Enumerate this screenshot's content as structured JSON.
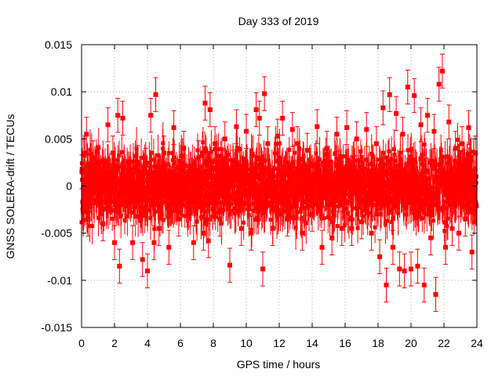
{
  "chart_data": {
    "type": "scatter",
    "title": "Day 333 of 2019",
    "xlabel": "GPS time / hours",
    "ylabel": "GNSS SOLERA-drift / TECUs",
    "xlim": [
      0,
      24
    ],
    "ylim": [
      -0.015,
      0.015
    ],
    "x_ticks": [
      0,
      2,
      4,
      6,
      8,
      10,
      12,
      14,
      16,
      18,
      20,
      22,
      24
    ],
    "x_tick_labels": [
      "0",
      "2",
      "4",
      "6",
      "8",
      "10",
      "12",
      "14",
      "16",
      "18",
      "20",
      "22",
      "24"
    ],
    "y_ticks": [
      -0.015,
      -0.01,
      -0.005,
      0,
      0.005,
      0.01,
      0.015
    ],
    "y_tick_labels": [
      "-0.015",
      "-0.01",
      "-0.005",
      "0",
      "0.005",
      "0.01",
      "0.015"
    ],
    "grid": true,
    "error_bars": true,
    "series_color": "#ff0000",
    "series": [
      {
        "marker": "square",
        "x": [
          0.02,
          0.1,
          0.2,
          0.3,
          0.4,
          0.5,
          0.7,
          1.0,
          1.3,
          1.6,
          1.9,
          2.0,
          2.2,
          2.3,
          2.5,
          2.8,
          3.1,
          3.4,
          3.7,
          3.9,
          4.0,
          4.2,
          4.4,
          4.5,
          4.7,
          5.0,
          5.3,
          5.6,
          5.9,
          6.2,
          6.5,
          6.8,
          7.1,
          7.4,
          7.5,
          7.7,
          7.8,
          8.1,
          8.4,
          8.7,
          9.0,
          9.2,
          9.4,
          9.7,
          10.0,
          10.3,
          10.6,
          10.8,
          11.0,
          11.1,
          11.3,
          11.6,
          11.9,
          12.2,
          12.5,
          12.8,
          13.1,
          13.4,
          13.7,
          14.0,
          14.3,
          14.6,
          14.9,
          15.2,
          15.5,
          15.8,
          16.1,
          16.4,
          16.7,
          17.0,
          17.3,
          17.6,
          17.9,
          18.1,
          18.3,
          18.5,
          18.7,
          18.9,
          19.1,
          19.3,
          19.5,
          19.6,
          19.8,
          20.0,
          20.2,
          20.4,
          20.6,
          20.8,
          21.0,
          21.2,
          21.4,
          21.5,
          21.7,
          21.9,
          22.1,
          22.3,
          22.5,
          22.7,
          22.9,
          23.1,
          23.3,
          23.5,
          23.7,
          23.9
        ],
        "y": [
          0.0015,
          -0.002,
          0.0035,
          0.0055,
          -0.0035,
          0.002,
          0.003,
          0.0025,
          -0.004,
          0.0065,
          0.0035,
          -0.006,
          0.0075,
          -0.0085,
          0.0072,
          0.001,
          -0.006,
          0.0025,
          -0.0078,
          0.0022,
          -0.009,
          0.0075,
          -0.006,
          0.0097,
          -0.0045,
          0.0035,
          -0.0065,
          0.0062,
          -0.0035,
          0.004,
          -0.0025,
          -0.006,
          0.003,
          -0.005,
          0.0088,
          -0.0058,
          0.0081,
          0.0045,
          -0.0035,
          0.005,
          -0.0084,
          0.002,
          0.0063,
          -0.0045,
          0.0058,
          -0.005,
          0.0081,
          0.0072,
          -0.0088,
          0.0098,
          0.0045,
          -0.0045,
          0.0053,
          0.0072,
          -0.0035,
          0.006,
          0.0045,
          -0.005,
          0.0038,
          -0.003,
          0.0063,
          -0.0065,
          0.004,
          -0.0055,
          0.0055,
          -0.0045,
          0.0062,
          -0.0045,
          0.005,
          -0.0038,
          0.006,
          -0.005,
          0.0045,
          -0.0075,
          0.0083,
          -0.0105,
          0.0097,
          -0.0065,
          0.0077,
          -0.0088,
          0.0055,
          -0.009,
          0.0105,
          -0.0088,
          0.0096,
          -0.0085,
          0.0065,
          -0.0105,
          0.0075,
          -0.0055,
          0.0058,
          -0.0115,
          0.0108,
          0.0122,
          -0.0065,
          0.0068,
          -0.0045,
          0.004,
          -0.005,
          0.0045,
          -0.0035,
          0.0062,
          -0.007,
          0.0035
        ],
        "yerr": [
          0.0018,
          0.0018,
          0.0018,
          0.0018,
          0.0018,
          0.0018,
          0.0018,
          0.0018,
          0.0018,
          0.0018,
          0.0018,
          0.0018,
          0.0018,
          0.0018,
          0.0018,
          0.0018,
          0.0018,
          0.0018,
          0.0018,
          0.0018,
          0.0018,
          0.0018,
          0.0018,
          0.0018,
          0.0018,
          0.0018,
          0.0018,
          0.0018,
          0.0018,
          0.0018,
          0.0018,
          0.0018,
          0.0018,
          0.0018,
          0.0018,
          0.0018,
          0.0018,
          0.0018,
          0.0018,
          0.0018,
          0.0018,
          0.0018,
          0.0018,
          0.0018,
          0.0018,
          0.0018,
          0.0018,
          0.0018,
          0.0018,
          0.0018,
          0.0018,
          0.0018,
          0.0018,
          0.0018,
          0.0018,
          0.0018,
          0.0018,
          0.0018,
          0.0018,
          0.0018,
          0.0018,
          0.0018,
          0.0018,
          0.0018,
          0.0018,
          0.0018,
          0.0018,
          0.0018,
          0.0018,
          0.0018,
          0.0018,
          0.0018,
          0.0018,
          0.0018,
          0.0018,
          0.0018,
          0.0018,
          0.0018,
          0.0018,
          0.0018,
          0.0018,
          0.0018,
          0.0018,
          0.0018,
          0.0018,
          0.0018,
          0.0018,
          0.0018,
          0.0018,
          0.0018,
          0.0018,
          0.0018,
          0.0018,
          0.0018,
          0.0018,
          0.0018,
          0.0018,
          0.0018,
          0.0018,
          0.0018,
          0.0018,
          0.0018,
          0.0018,
          0.0018
        ]
      }
    ]
  }
}
